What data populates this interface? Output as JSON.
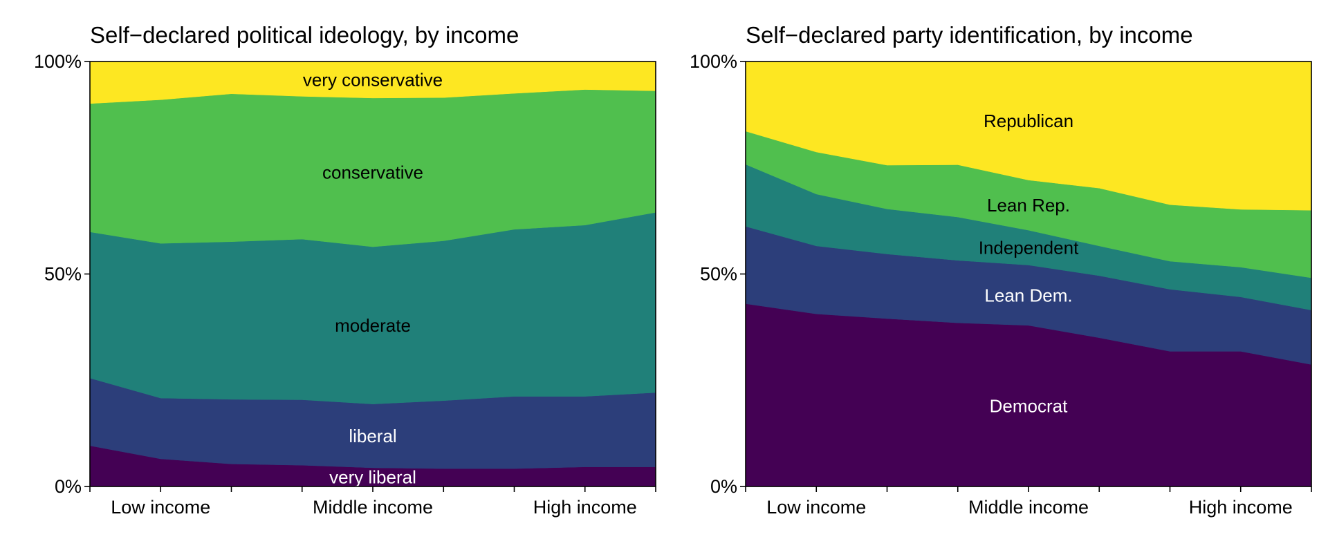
{
  "chart_data": [
    {
      "type": "area",
      "stacked": true,
      "normalized": true,
      "title": "Self−declared political ideology, by income",
      "xlabel": "",
      "ylabel": "",
      "ylim": [
        0,
        100
      ],
      "x": [
        1,
        2,
        3,
        4,
        5,
        6,
        7,
        8,
        9
      ],
      "xticks": [
        1,
        2,
        3,
        4,
        5,
        6,
        7,
        8,
        9
      ],
      "xtick_labels": {
        "2": "Low income",
        "5": "Middle income",
        "8": "High income"
      },
      "yticks": [
        0,
        50,
        100
      ],
      "ytick_labels": [
        "0%",
        "50%",
        "100%"
      ],
      "grid": false,
      "legend": "inline labels",
      "series": [
        {
          "name": "very liberal",
          "color": "#440154",
          "text_color": "#ffffff",
          "values": [
            9.6,
            6.5,
            5.3,
            5.0,
            4.4,
            4.2,
            4.2,
            4.6,
            4.6
          ]
        },
        {
          "name": "liberal",
          "color": "#2c3e7a",
          "text_color": "#ffffff",
          "values": [
            15.9,
            14.3,
            15.2,
            15.4,
            15.0,
            16.0,
            17.0,
            16.6,
            17.5
          ]
        },
        {
          "name": "moderate",
          "color": "#208079",
          "text_color": "#000000",
          "values": [
            34.4,
            36.4,
            37.1,
            37.8,
            37.0,
            37.6,
            39.3,
            40.3,
            42.4
          ]
        },
        {
          "name": "conservative",
          "color": "#50bf4e",
          "text_color": "#000000",
          "values": [
            30.2,
            33.8,
            34.8,
            33.6,
            35.0,
            33.7,
            32.0,
            31.9,
            28.6
          ]
        },
        {
          "name": "very conservative",
          "color": "#fde722",
          "text_color": "#000000",
          "values": [
            9.9,
            9.0,
            7.6,
            8.2,
            8.6,
            8.5,
            7.5,
            6.6,
            6.9
          ]
        }
      ]
    },
    {
      "type": "area",
      "stacked": true,
      "normalized": true,
      "title": "Self−declared party identification, by income",
      "xlabel": "",
      "ylabel": "",
      "ylim": [
        0,
        100
      ],
      "x": [
        1,
        2,
        3,
        4,
        5,
        6,
        7,
        8,
        9
      ],
      "xticks": [
        1,
        2,
        3,
        4,
        5,
        6,
        7,
        8,
        9
      ],
      "xtick_labels": {
        "2": "Low income",
        "5": "Middle income",
        "8": "High income"
      },
      "yticks": [
        0,
        50,
        100
      ],
      "ytick_labels": [
        "0%",
        "50%",
        "100%"
      ],
      "grid": false,
      "legend": "inline labels",
      "series": [
        {
          "name": "Democrat",
          "color": "#440154",
          "text_color": "#ffffff",
          "values": [
            43.0,
            40.6,
            39.5,
            38.5,
            37.9,
            35.0,
            31.8,
            31.8,
            28.7
          ]
        },
        {
          "name": "Lean Dem.",
          "color": "#2c3e7a",
          "text_color": "#ffffff",
          "values": [
            18.2,
            16.0,
            15.2,
            14.7,
            14.2,
            14.6,
            14.6,
            12.8,
            12.8
          ]
        },
        {
          "name": "Independent",
          "color": "#208079",
          "text_color": "#000000",
          "values": [
            14.6,
            12.2,
            10.6,
            10.2,
            8.2,
            7.0,
            6.6,
            7.0,
            7.6
          ]
        },
        {
          "name": "Lean Rep.",
          "color": "#50bf4e",
          "text_color": "#000000",
          "values": [
            7.8,
            9.9,
            10.3,
            12.3,
            11.8,
            13.6,
            13.3,
            13.6,
            15.9
          ]
        },
        {
          "name": "Republican",
          "color": "#fde722",
          "text_color": "#000000",
          "values": [
            16.4,
            21.3,
            24.4,
            24.3,
            27.9,
            29.8,
            33.7,
            34.8,
            35.0
          ]
        }
      ]
    }
  ]
}
